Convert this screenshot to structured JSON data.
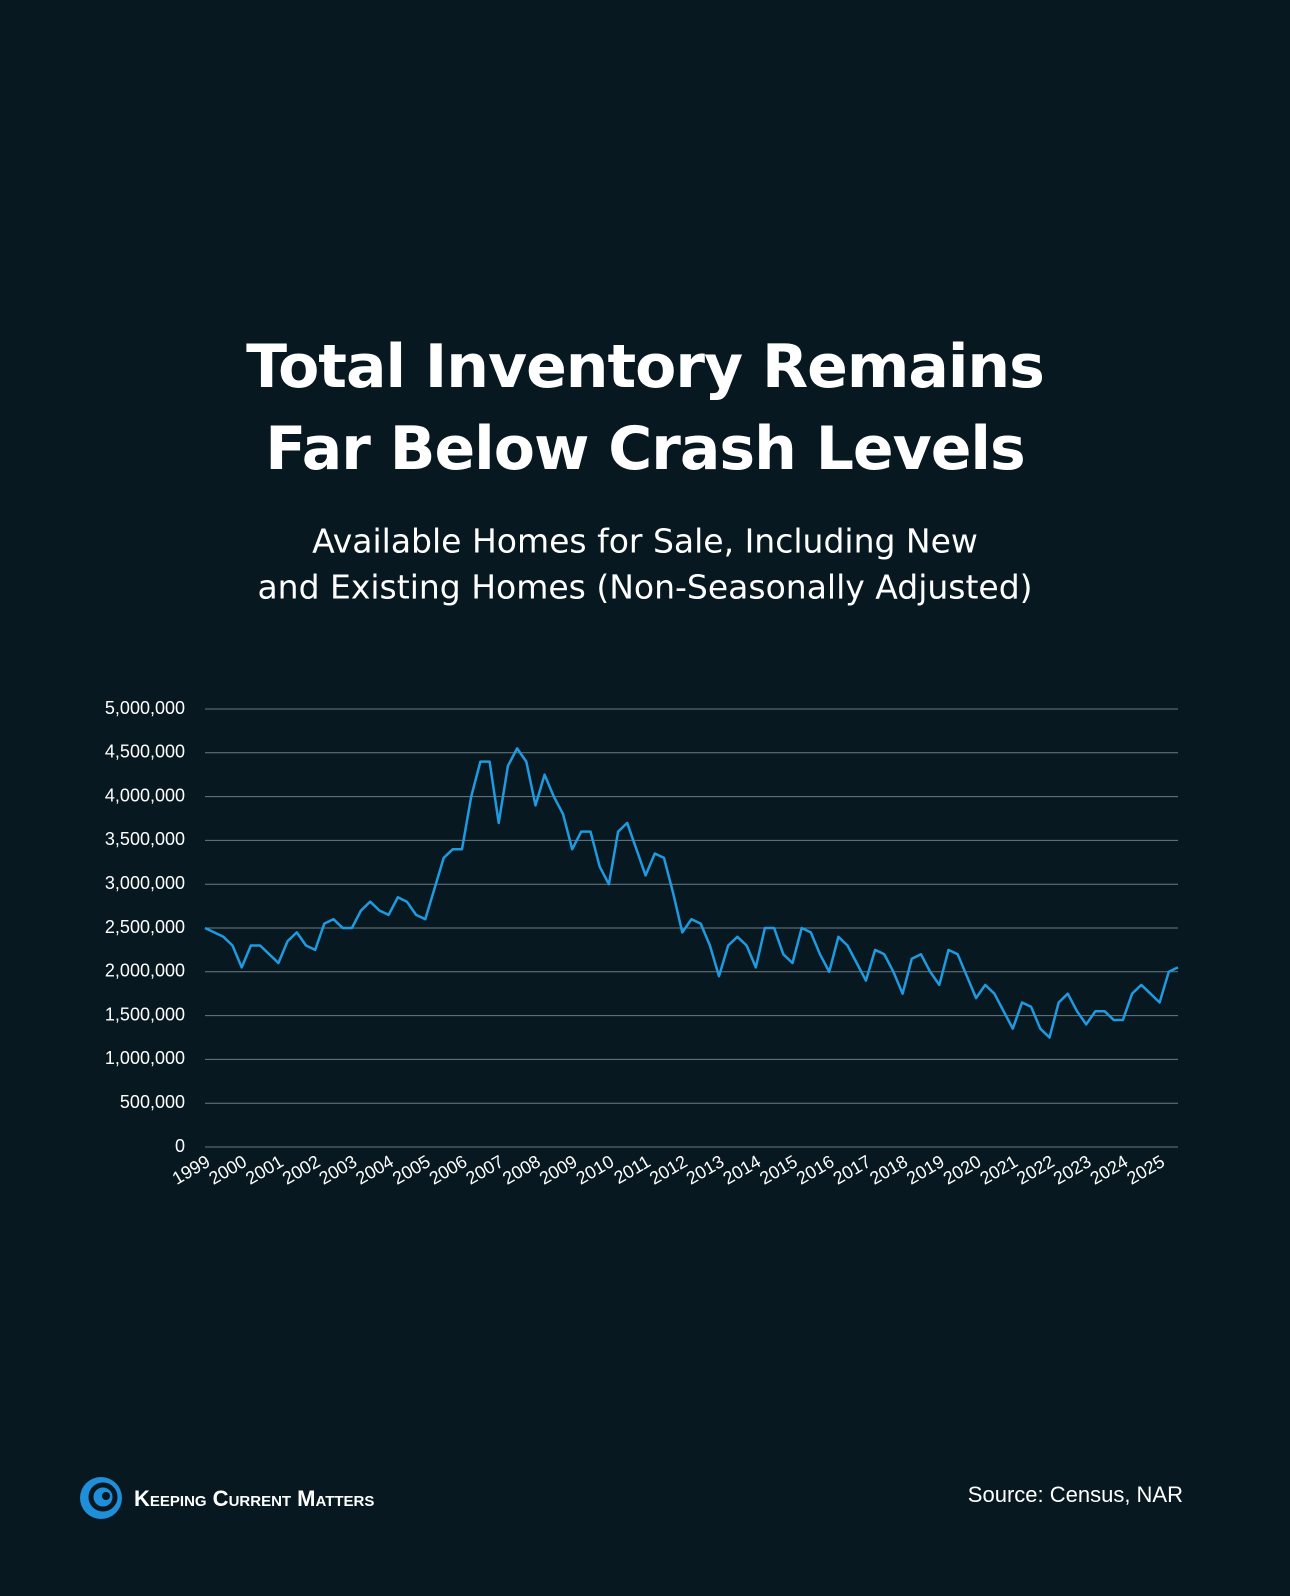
{
  "chart_data": {
    "type": "line",
    "title": "Total Inventory Remains Far Below Crash Levels",
    "subtitle": [
      "Available Homes for Sale, Including New",
      "and Existing Homes (Non-Seasonally Adjusted)"
    ],
    "x": [
      1999,
      1999.25,
      1999.5,
      1999.75,
      2000,
      2000.25,
      2000.5,
      2000.75,
      2001,
      2001.25,
      2001.5,
      2001.75,
      2002,
      2002.25,
      2002.5,
      2002.75,
      2003,
      2003.25,
      2003.5,
      2003.75,
      2004,
      2004.25,
      2004.5,
      2004.75,
      2005,
      2005.25,
      2005.5,
      2005.75,
      2006,
      2006.25,
      2006.5,
      2006.75,
      2007,
      2007.25,
      2007.5,
      2007.75,
      2008,
      2008.25,
      2008.5,
      2008.75,
      2009,
      2009.25,
      2009.5,
      2009.75,
      2010,
      2010.25,
      2010.5,
      2010.75,
      2011,
      2011.25,
      2011.5,
      2011.75,
      2012,
      2012.25,
      2012.5,
      2012.75,
      2013,
      2013.25,
      2013.5,
      2013.75,
      2014,
      2014.25,
      2014.5,
      2014.75,
      2015,
      2015.25,
      2015.5,
      2015.75,
      2016,
      2016.25,
      2016.5,
      2016.75,
      2017,
      2017.25,
      2017.5,
      2017.75,
      2018,
      2018.25,
      2018.5,
      2018.75,
      2019,
      2019.25,
      2019.5,
      2019.75,
      2020,
      2020.25,
      2020.5,
      2020.75,
      2021,
      2021.25,
      2021.5,
      2021.75,
      2022,
      2022.25,
      2022.5,
      2022.75,
      2023,
      2023.25,
      2023.5,
      2023.75,
      2024,
      2024.25,
      2024.5,
      2024.75,
      2025,
      2025.25,
      2025.5
    ],
    "values": [
      2500000,
      2450000,
      2400000,
      2300000,
      2050000,
      2300000,
      2300000,
      2200000,
      2100000,
      2350000,
      2450000,
      2300000,
      2250000,
      2550000,
      2600000,
      2500000,
      2500000,
      2700000,
      2800000,
      2700000,
      2650000,
      2850000,
      2800000,
      2650000,
      2600000,
      2950000,
      3300000,
      3400000,
      3400000,
      4000000,
      4400000,
      4400000,
      3700000,
      4350000,
      4550000,
      4400000,
      3900000,
      4250000,
      4000000,
      3800000,
      3400000,
      3600000,
      3600000,
      3200000,
      3000000,
      3600000,
      3700000,
      3400000,
      3100000,
      3350000,
      3300000,
      2900000,
      2450000,
      2600000,
      2550000,
      2300000,
      1950000,
      2300000,
      2400000,
      2300000,
      2050000,
      2500000,
      2500000,
      2200000,
      2100000,
      2500000,
      2450000,
      2200000,
      2000000,
      2400000,
      2300000,
      2100000,
      1900000,
      2250000,
      2200000,
      2000000,
      1750000,
      2150000,
      2200000,
      2000000,
      1850000,
      2250000,
      2200000,
      1950000,
      1700000,
      1850000,
      1750000,
      1550000,
      1350000,
      1650000,
      1600000,
      1350000,
      1250000,
      1650000,
      1750000,
      1550000,
      1400000,
      1550000,
      1550000,
      1450000,
      1450000,
      1750000,
      1850000,
      1750000,
      1650000,
      2000000,
      2050000
    ],
    "color": "#1e9be0",
    "xlim": [
      1999,
      2025.5
    ],
    "xticks": [
      1999,
      2000,
      2001,
      2002,
      2003,
      2004,
      2005,
      2006,
      2007,
      2008,
      2009,
      2010,
      2011,
      2012,
      2013,
      2014,
      2015,
      2016,
      2017,
      2018,
      2019,
      2020,
      2021,
      2022,
      2023,
      2024,
      2025
    ],
    "ylim": [
      0,
      5000000
    ],
    "yticks": [
      0,
      {
        "value": 500000,
        "label": "500,000"
      },
      {
        "value": 1000000,
        "label": "1,000,000"
      },
      {
        "value": 1500000,
        "label": "1,500,000"
      },
      {
        "value": 2000000,
        "label": "2,000,000"
      },
      {
        "value": 2500000,
        "label": "2,500,000"
      },
      {
        "value": 3000000,
        "label": "3,000,000"
      },
      {
        "value": 3500000,
        "label": "3,500,000"
      },
      {
        "value": 4000000,
        "label": "4,000,000"
      },
      {
        "value": 4500000,
        "label": "4,500,000"
      },
      {
        "value": 5000000,
        "label": "5,000,000"
      }
    ],
    "grid": true,
    "source": "Source: Census, NAR",
    "brand": "Keeping Current Matters"
  }
}
